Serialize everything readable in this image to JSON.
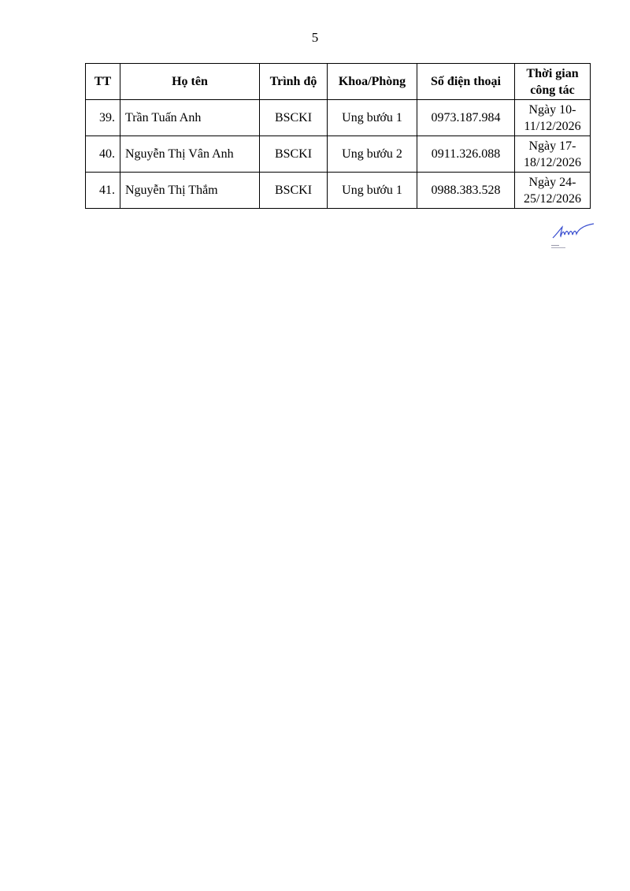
{
  "page_number": "5",
  "table": {
    "headers": [
      "TT",
      "Họ tên",
      "Trình độ",
      "Khoa/Phòng",
      "Số điện thoại",
      "Thời gian công tác"
    ],
    "rows": [
      [
        "39.",
        "Trần Tuấn Anh",
        "BSCKI",
        "Ung bướu 1",
        "0973.187.984",
        "Ngày 10-11/12/2026"
      ],
      [
        "40.",
        "Nguyễn Thị Vân Anh",
        "BSCKI",
        "Ung bướu 2",
        "0911.326.088",
        "Ngày 17-18/12/2026"
      ],
      [
        "41.",
        "Nguyễn Thị Thắm",
        "BSCKI",
        "Ung bướu 1",
        "0988.383.528",
        "Ngày 24-25/12/2026"
      ]
    ]
  },
  "signature": {
    "color": "#3a4fd0"
  }
}
